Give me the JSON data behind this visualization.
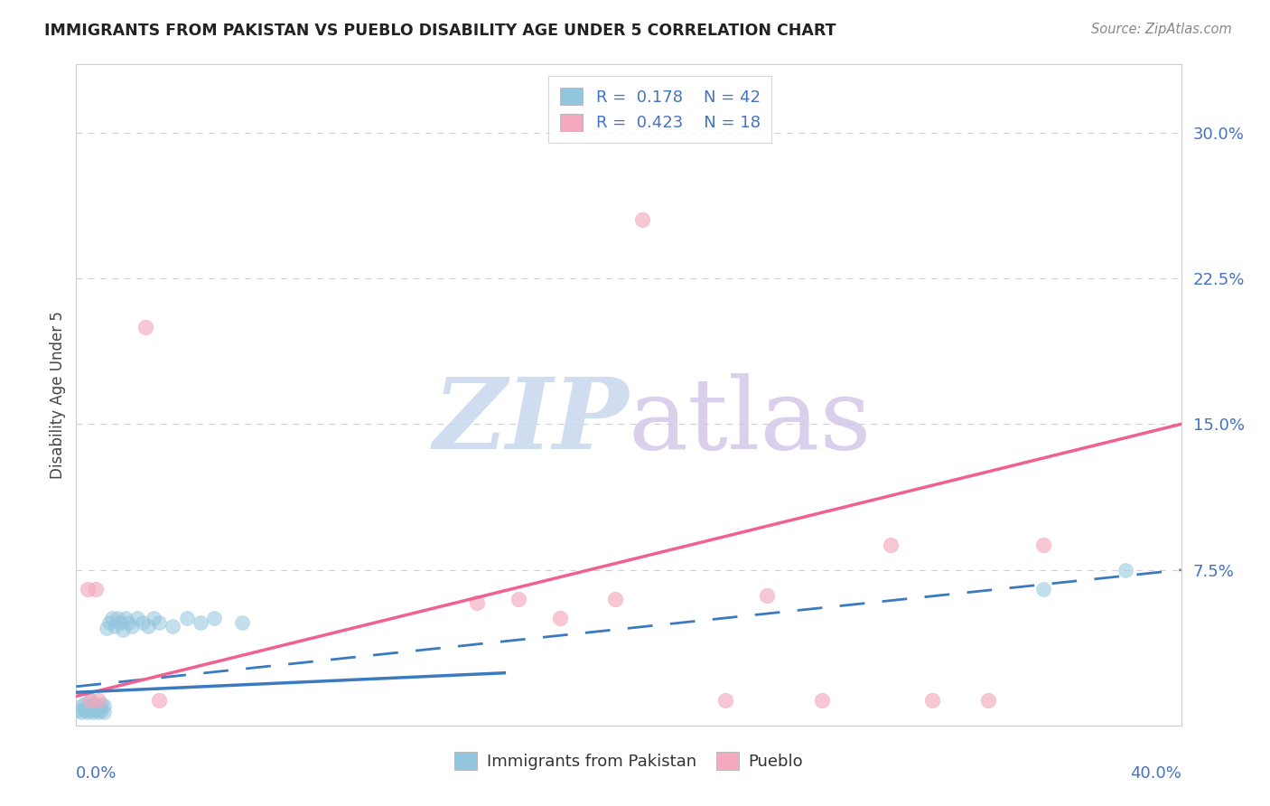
{
  "title": "IMMIGRANTS FROM PAKISTAN VS PUEBLO DISABILITY AGE UNDER 5 CORRELATION CHART",
  "source": "Source: ZipAtlas.com",
  "ylabel": "Disability Age Under 5",
  "ytick_labels": [
    "7.5%",
    "15.0%",
    "22.5%",
    "30.0%"
  ],
  "ytick_values": [
    0.075,
    0.15,
    0.225,
    0.3
  ],
  "xlim": [
    0.0,
    0.4
  ],
  "ylim": [
    -0.005,
    0.335
  ],
  "blue_scatter_color": "#92c5de",
  "pink_scatter_color": "#f4a9be",
  "blue_line_color": "#3a7abf",
  "pink_line_color": "#f06090",
  "blue_solid_line": {
    "x0": 0.0,
    "x1": 0.155,
    "y0": 0.012,
    "y1": 0.022
  },
  "blue_dashed_line": {
    "x0": 0.0,
    "x1": 0.4,
    "y0": 0.015,
    "y1": 0.075
  },
  "pink_solid_line": {
    "x0": 0.0,
    "x1": 0.4,
    "y0": 0.01,
    "y1": 0.15
  },
  "pakistan_x": [
    0.001,
    0.002,
    0.002,
    0.003,
    0.003,
    0.004,
    0.004,
    0.005,
    0.005,
    0.005,
    0.006,
    0.006,
    0.007,
    0.007,
    0.008,
    0.008,
    0.009,
    0.009,
    0.01,
    0.01,
    0.011,
    0.012,
    0.013,
    0.014,
    0.015,
    0.016,
    0.017,
    0.018,
    0.019,
    0.02,
    0.022,
    0.024,
    0.026,
    0.028,
    0.03,
    0.035,
    0.04,
    0.045,
    0.05,
    0.06,
    0.35,
    0.38
  ],
  "pakistan_y": [
    0.003,
    0.002,
    0.005,
    0.003,
    0.006,
    0.002,
    0.004,
    0.003,
    0.005,
    0.008,
    0.002,
    0.006,
    0.003,
    0.005,
    0.002,
    0.004,
    0.003,
    0.006,
    0.002,
    0.005,
    0.045,
    0.048,
    0.05,
    0.046,
    0.05,
    0.048,
    0.044,
    0.05,
    0.048,
    0.046,
    0.05,
    0.048,
    0.046,
    0.05,
    0.048,
    0.046,
    0.05,
    0.048,
    0.05,
    0.048,
    0.065,
    0.075
  ],
  "pueblo_x": [
    0.004,
    0.007,
    0.025,
    0.03,
    0.145,
    0.16,
    0.195,
    0.205,
    0.235,
    0.25,
    0.27,
    0.295,
    0.31,
    0.33,
    0.35,
    0.175,
    0.005,
    0.008
  ],
  "pueblo_y": [
    0.065,
    0.065,
    0.2,
    0.008,
    0.058,
    0.06,
    0.06,
    0.255,
    0.008,
    0.062,
    0.008,
    0.088,
    0.008,
    0.008,
    0.088,
    0.05,
    0.008,
    0.008
  ],
  "watermark_zip_color": "#c8d8ee",
  "watermark_atlas_color": "#d4c8e8",
  "background_color": "#ffffff",
  "grid_color": "#d0d0d0"
}
